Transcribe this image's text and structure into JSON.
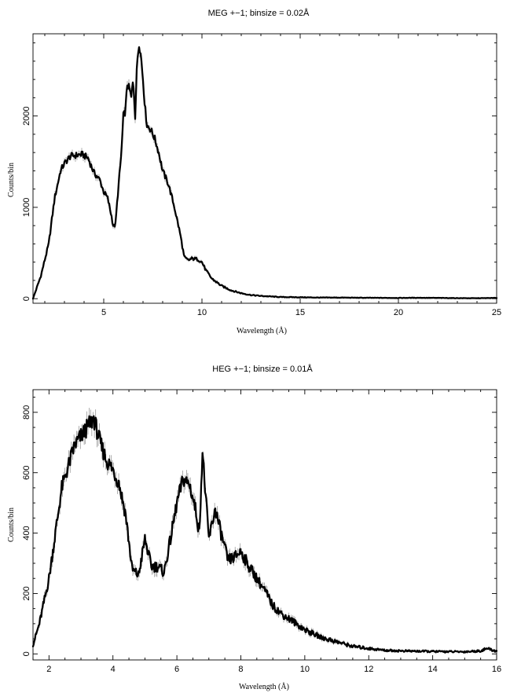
{
  "chart_data": [
    {
      "type": "line",
      "title": "MEG +−1; binsize = 0.02Å",
      "xlabel": "Wavelength (Å)",
      "ylabel": "Counts/bin",
      "xlim": [
        1.4,
        25
      ],
      "ylim": [
        -50,
        2900
      ],
      "xticks": [
        5,
        10,
        15,
        20,
        25
      ],
      "yticks": [
        0,
        1000,
        2000
      ],
      "grid": false,
      "series": [
        {
          "x": [
            1.4,
            1.8,
            2.2,
            2.5,
            2.8,
            3.0,
            3.3,
            3.6,
            3.9,
            4.2,
            4.5,
            4.8,
            5.0,
            5.2,
            5.4,
            5.5,
            5.6,
            5.7,
            5.8,
            5.9,
            6.0,
            6.1,
            6.2,
            6.3,
            6.4,
            6.5,
            6.6,
            6.7,
            6.8,
            6.9,
            7.0,
            7.1,
            7.2,
            7.4,
            7.6,
            7.8,
            8.0,
            8.3,
            8.6,
            8.9,
            9.1,
            9.3,
            9.5,
            9.8,
            10.0,
            10.2,
            10.5,
            11.0,
            11.5,
            12.0,
            12.5,
            13.0,
            14.0,
            15.0,
            16.0,
            17.0,
            18.0,
            20.0,
            21.0,
            22.0,
            23.0,
            24.0,
            25.0
          ],
          "y": [
            0,
            250,
            600,
            1100,
            1400,
            1480,
            1560,
            1570,
            1580,
            1540,
            1380,
            1300,
            1170,
            1100,
            900,
            780,
            820,
            1100,
            1350,
            1600,
            2000,
            2050,
            2350,
            2300,
            2200,
            2400,
            2000,
            2600,
            2800,
            2650,
            2400,
            2100,
            1900,
            1850,
            1750,
            1600,
            1400,
            1250,
            1000,
            700,
            450,
            420,
            440,
            430,
            400,
            310,
            220,
            140,
            90,
            60,
            40,
            30,
            18,
            15,
            12,
            12,
            10,
            8,
            10,
            8,
            6,
            5,
            8
          ]
        }
      ]
    },
    {
      "type": "line",
      "title": "HEG +−1; binsize = 0.01Å",
      "xlabel": "Wavelength (Å)",
      "ylabel": "Counts/bin",
      "xlim": [
        1.5,
        16
      ],
      "ylim": [
        -20,
        875
      ],
      "xticks": [
        2,
        4,
        6,
        8,
        10,
        12,
        14,
        16
      ],
      "yticks": [
        0,
        200,
        400,
        600,
        800
      ],
      "grid": false,
      "series": [
        {
          "x": [
            1.5,
            1.7,
            2.0,
            2.2,
            2.4,
            2.6,
            2.8,
            3.0,
            3.2,
            3.4,
            3.6,
            3.8,
            4.0,
            4.2,
            4.4,
            4.6,
            4.8,
            5.0,
            5.2,
            5.4,
            5.6,
            5.8,
            6.0,
            6.2,
            6.4,
            6.6,
            6.7,
            6.8,
            6.9,
            7.0,
            7.2,
            7.4,
            7.6,
            7.8,
            8.0,
            8.2,
            8.5,
            8.8,
            9.0,
            9.3,
            9.6,
            10.0,
            10.5,
            11.0,
            11.5,
            12.0,
            12.5,
            13.0,
            14.0,
            15.0,
            15.5,
            15.7,
            16.0
          ],
          "y": [
            30,
            100,
            250,
            400,
            550,
            620,
            690,
            720,
            750,
            780,
            700,
            640,
            610,
            560,
            460,
            280,
            260,
            380,
            290,
            290,
            270,
            380,
            500,
            580,
            560,
            470,
            400,
            670,
            520,
            380,
            480,
            390,
            310,
            320,
            340,
            300,
            250,
            200,
            160,
            130,
            110,
            80,
            55,
            40,
            25,
            18,
            12,
            10,
            8,
            7,
            10,
            18,
            8
          ]
        }
      ]
    }
  ]
}
